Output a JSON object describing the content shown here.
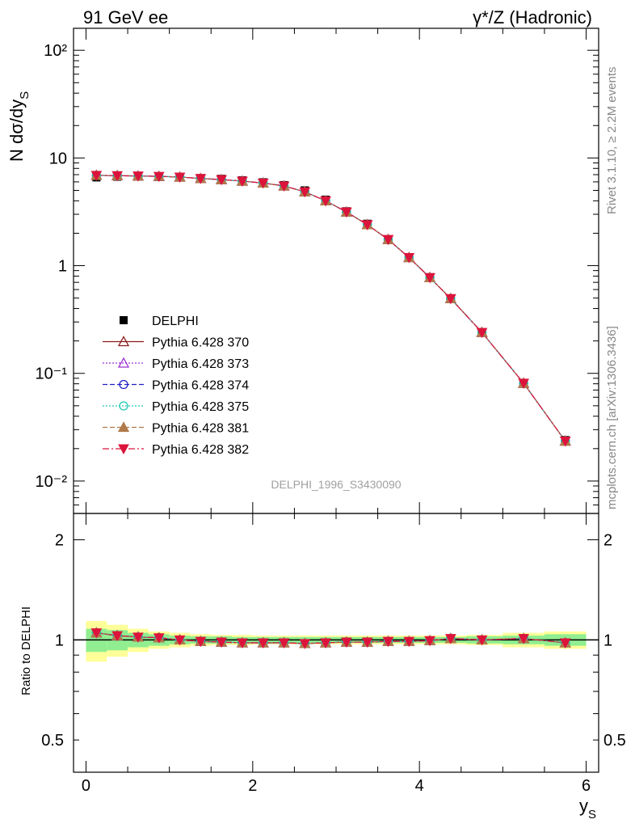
{
  "header": {
    "left": "91 GeV ee",
    "right": "γ*/Z (Hadronic)"
  },
  "side": {
    "rivet": "Rivet 3.1.10, ≥ 2.2M events",
    "source": "mcplots.cern.ch [arXiv:1306.3436]"
  },
  "analysis_label": "DELPHI_1996_S3430090",
  "axes": {
    "main_ylabel_main": "N dσ/dy",
    "main_ylabel_sub": "S",
    "ratio_ylabel": "Ratio to DELPHI",
    "xlabel_main": "y",
    "xlabel_sub": "S"
  },
  "legend": {
    "data": "DELPHI",
    "mc": [
      "Pythia 6.428 370",
      "Pythia 6.428 373",
      "Pythia 6.428 374",
      "Pythia 6.428 375",
      "Pythia 6.428 381",
      "Pythia 6.428 382"
    ]
  },
  "colors": {
    "data": "#000000",
    "p370": "#8b1a1a",
    "p373": "#9a32cd",
    "p374": "#2020c8",
    "p375": "#20c8b4",
    "p381": "#b07a4a",
    "p382": "#dc143c",
    "band_inner": "#90ee90",
    "band_outer": "#ffff99"
  },
  "chart_data": [
    {
      "type": "scatter",
      "panel": "main",
      "yscale": "log",
      "xlim": [
        -0.15,
        6.15
      ],
      "ylim": [
        0.005,
        160
      ],
      "x": [
        0.125,
        0.375,
        0.625,
        0.875,
        1.125,
        1.375,
        1.625,
        1.875,
        2.125,
        2.375,
        2.625,
        2.875,
        3.125,
        3.375,
        3.625,
        3.875,
        4.125,
        4.375,
        4.75,
        5.25,
        5.75
      ],
      "series": [
        {
          "name": "DELPHI",
          "values": [
            6.6,
            6.7,
            6.7,
            6.65,
            6.6,
            6.5,
            6.4,
            6.2,
            5.95,
            5.6,
            5.0,
            4.1,
            3.2,
            2.45,
            1.75,
            1.2,
            0.78,
            0.49,
            0.24,
            0.08,
            0.024
          ]
        },
        {
          "name": "Pythia 6.428 370",
          "values": [
            6.9,
            6.85,
            6.8,
            6.75,
            6.65,
            6.45,
            6.3,
            6.1,
            5.85,
            5.5,
            4.85,
            4.0,
            3.15,
            2.4,
            1.75,
            1.19,
            0.775,
            0.495,
            0.24,
            0.081,
            0.0235
          ]
        },
        {
          "name": "Pythia 6.428 373",
          "values": [
            6.9,
            6.85,
            6.8,
            6.75,
            6.65,
            6.45,
            6.3,
            6.1,
            5.85,
            5.5,
            4.85,
            4.0,
            3.15,
            2.4,
            1.75,
            1.19,
            0.775,
            0.495,
            0.24,
            0.081,
            0.0235
          ]
        },
        {
          "name": "Pythia 6.428 374",
          "values": [
            6.9,
            6.85,
            6.8,
            6.75,
            6.65,
            6.45,
            6.3,
            6.1,
            5.85,
            5.5,
            4.85,
            4.0,
            3.15,
            2.4,
            1.75,
            1.19,
            0.775,
            0.495,
            0.24,
            0.081,
            0.0235
          ]
        },
        {
          "name": "Pythia 6.428 375",
          "values": [
            6.9,
            6.85,
            6.8,
            6.75,
            6.65,
            6.45,
            6.3,
            6.1,
            5.85,
            5.5,
            4.85,
            4.0,
            3.15,
            2.4,
            1.75,
            1.19,
            0.775,
            0.495,
            0.24,
            0.081,
            0.0235
          ]
        },
        {
          "name": "Pythia 6.428 381",
          "values": [
            6.9,
            6.85,
            6.8,
            6.75,
            6.65,
            6.45,
            6.3,
            6.1,
            5.85,
            5.5,
            4.85,
            4.0,
            3.15,
            2.4,
            1.75,
            1.19,
            0.775,
            0.495,
            0.24,
            0.081,
            0.0235
          ]
        },
        {
          "name": "Pythia 6.428 382",
          "values": [
            6.9,
            6.85,
            6.8,
            6.75,
            6.65,
            6.45,
            6.3,
            6.1,
            5.85,
            5.5,
            4.85,
            4.0,
            3.15,
            2.4,
            1.75,
            1.19,
            0.775,
            0.495,
            0.24,
            0.081,
            0.0235
          ]
        }
      ],
      "xticks": [
        0,
        2,
        4,
        6
      ],
      "ytick_labels": [
        "10⁻²",
        "10⁻¹",
        "1",
        "10",
        "10²"
      ],
      "ytick_values": [
        0.01,
        0.1,
        1,
        10,
        100
      ]
    },
    {
      "type": "scatter",
      "panel": "ratio",
      "yscale": "log",
      "xlim": [
        -0.15,
        6.15
      ],
      "ylim": [
        0.4,
        2.4
      ],
      "x": [
        0.125,
        0.375,
        0.625,
        0.875,
        1.125,
        1.375,
        1.625,
        1.875,
        2.125,
        2.375,
        2.625,
        2.875,
        3.125,
        3.375,
        3.625,
        3.875,
        4.125,
        4.375,
        4.75,
        5.25,
        5.75
      ],
      "band_inner": [
        [
          0.92,
          1.08
        ],
        [
          0.93,
          1.07
        ],
        [
          0.95,
          1.05
        ],
        [
          0.96,
          1.04
        ],
        [
          0.97,
          1.03
        ],
        [
          0.975,
          1.025
        ],
        [
          0.975,
          1.025
        ],
        [
          0.98,
          1.02
        ],
        [
          0.98,
          1.02
        ],
        [
          0.98,
          1.02
        ],
        [
          0.98,
          1.02
        ],
        [
          0.98,
          1.02
        ],
        [
          0.98,
          1.02
        ],
        [
          0.98,
          1.02
        ],
        [
          0.98,
          1.02
        ],
        [
          0.98,
          1.02
        ],
        [
          0.98,
          1.02
        ],
        [
          0.98,
          1.02
        ],
        [
          0.975,
          1.025
        ],
        [
          0.97,
          1.03
        ],
        [
          0.96,
          1.04
        ]
      ],
      "band_outer": [
        [
          0.86,
          1.14
        ],
        [
          0.89,
          1.11
        ],
        [
          0.92,
          1.08
        ],
        [
          0.94,
          1.06
        ],
        [
          0.95,
          1.05
        ],
        [
          0.96,
          1.04
        ],
        [
          0.965,
          1.035
        ],
        [
          0.965,
          1.035
        ],
        [
          0.97,
          1.03
        ],
        [
          0.97,
          1.03
        ],
        [
          0.97,
          1.03
        ],
        [
          0.97,
          1.03
        ],
        [
          0.97,
          1.03
        ],
        [
          0.97,
          1.03
        ],
        [
          0.97,
          1.03
        ],
        [
          0.97,
          1.03
        ],
        [
          0.97,
          1.03
        ],
        [
          0.97,
          1.03
        ],
        [
          0.965,
          1.035
        ],
        [
          0.95,
          1.05
        ],
        [
          0.94,
          1.06
        ]
      ],
      "series": [
        {
          "name": "Pythia 6.428 370",
          "values": [
            1.05,
            1.03,
            1.02,
            1.015,
            1.0,
            0.99,
            0.985,
            0.98,
            0.98,
            0.98,
            0.975,
            0.98,
            0.985,
            0.985,
            0.99,
            0.99,
            0.995,
            1.01,
            1.0,
            1.01,
            0.98
          ]
        },
        {
          "name": "Pythia 6.428 373",
          "values": [
            1.05,
            1.03,
            1.02,
            1.015,
            1.0,
            0.99,
            0.985,
            0.98,
            0.98,
            0.98,
            0.975,
            0.98,
            0.985,
            0.985,
            0.99,
            0.99,
            0.995,
            1.01,
            1.0,
            1.01,
            0.98
          ]
        },
        {
          "name": "Pythia 6.428 374",
          "values": [
            1.05,
            1.03,
            1.02,
            1.015,
            1.0,
            0.99,
            0.985,
            0.98,
            0.98,
            0.98,
            0.975,
            0.98,
            0.985,
            0.985,
            0.99,
            0.99,
            0.995,
            1.01,
            1.0,
            1.01,
            0.98
          ]
        },
        {
          "name": "Pythia 6.428 375",
          "values": [
            1.05,
            1.03,
            1.02,
            1.015,
            1.0,
            0.99,
            0.985,
            0.98,
            0.98,
            0.98,
            0.975,
            0.98,
            0.985,
            0.985,
            0.99,
            0.99,
            0.995,
            1.01,
            1.0,
            1.01,
            0.98
          ]
        },
        {
          "name": "Pythia 6.428 381",
          "values": [
            1.05,
            1.03,
            1.02,
            1.015,
            1.0,
            0.99,
            0.985,
            0.98,
            0.98,
            0.98,
            0.975,
            0.98,
            0.985,
            0.985,
            0.99,
            0.99,
            0.995,
            1.01,
            1.0,
            1.01,
            0.98
          ]
        },
        {
          "name": "Pythia 6.428 382",
          "values": [
            1.05,
            1.03,
            1.02,
            1.015,
            1.0,
            0.99,
            0.985,
            0.98,
            0.98,
            0.98,
            0.975,
            0.98,
            0.985,
            0.985,
            0.99,
            0.99,
            0.995,
            1.01,
            1.0,
            1.01,
            0.98
          ]
        }
      ],
      "xtick_labels": [
        "0",
        "2",
        "4",
        "6"
      ],
      "ytick_labels": [
        "0.5",
        "1",
        "2"
      ],
      "ytick_values": [
        0.5,
        1,
        2
      ]
    }
  ]
}
